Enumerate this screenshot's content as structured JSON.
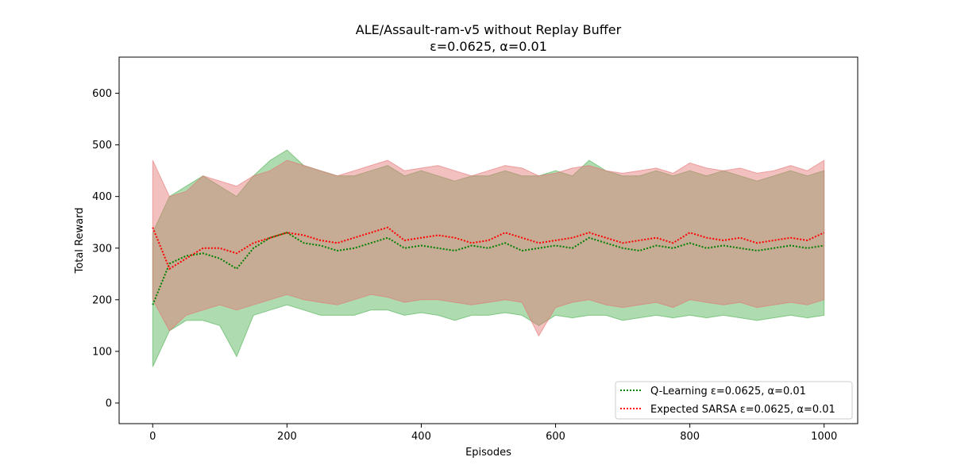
{
  "chart_data": {
    "type": "line",
    "title": "ALE/Assault-ram-v5 without Replay Buffer",
    "subtitle": "ε=0.0625, α=0.01",
    "xlabel": "Episodes",
    "ylabel": "Total Reward",
    "xlim": [
      -50,
      1050
    ],
    "ylim": [
      -40,
      670
    ],
    "xticks": [
      0,
      200,
      400,
      600,
      800,
      1000
    ],
    "yticks": [
      0,
      100,
      200,
      300,
      400,
      500,
      600
    ],
    "grid": false,
    "legend_position": "lower-right",
    "series": [
      {
        "name": "Q-Learning ε=0.0625, α=0.01",
        "color": "#008000",
        "band_color": "#4caf50",
        "line_style": "dotted",
        "x": [
          0,
          25,
          50,
          75,
          100,
          125,
          150,
          175,
          200,
          225,
          250,
          275,
          300,
          325,
          350,
          375,
          400,
          425,
          450,
          475,
          500,
          525,
          550,
          575,
          600,
          625,
          650,
          675,
          700,
          725,
          750,
          775,
          800,
          825,
          850,
          875,
          900,
          925,
          950,
          975,
          1000
        ],
        "mean": [
          190,
          270,
          285,
          290,
          280,
          260,
          300,
          320,
          330,
          310,
          305,
          295,
          300,
          310,
          320,
          300,
          305,
          300,
          295,
          305,
          300,
          310,
          295,
          300,
          305,
          300,
          320,
          310,
          300,
          295,
          305,
          300,
          310,
          300,
          305,
          300,
          295,
          300,
          305,
          300,
          305
        ],
        "lower": [
          70,
          140,
          160,
          160,
          150,
          90,
          170,
          180,
          190,
          180,
          170,
          170,
          170,
          180,
          180,
          170,
          175,
          170,
          160,
          170,
          170,
          175,
          170,
          150,
          170,
          165,
          170,
          170,
          160,
          165,
          170,
          165,
          170,
          165,
          170,
          165,
          160,
          165,
          170,
          165,
          170
        ],
        "upper": [
          330,
          400,
          420,
          440,
          420,
          400,
          440,
          470,
          490,
          460,
          450,
          440,
          440,
          450,
          460,
          440,
          450,
          440,
          430,
          440,
          440,
          450,
          440,
          440,
          450,
          440,
          470,
          450,
          440,
          440,
          450,
          440,
          450,
          440,
          450,
          440,
          430,
          440,
          450,
          440,
          450
        ]
      },
      {
        "name": "Expected SARSA ε=0.0625, α=0.01",
        "color": "#ff0000",
        "band_color": "#e57373",
        "line_style": "dotted",
        "x": [
          0,
          25,
          50,
          75,
          100,
          125,
          150,
          175,
          200,
          225,
          250,
          275,
          300,
          325,
          350,
          375,
          400,
          425,
          450,
          475,
          500,
          525,
          550,
          575,
          600,
          625,
          650,
          675,
          700,
          725,
          750,
          775,
          800,
          825,
          850,
          875,
          900,
          925,
          950,
          975,
          1000
        ],
        "mean": [
          340,
          260,
          280,
          300,
          300,
          290,
          310,
          320,
          330,
          325,
          315,
          310,
          320,
          330,
          340,
          315,
          320,
          325,
          320,
          310,
          315,
          330,
          320,
          310,
          315,
          320,
          330,
          320,
          310,
          315,
          320,
          310,
          330,
          320,
          315,
          320,
          310,
          315,
          320,
          315,
          330
        ],
        "lower": [
          200,
          140,
          170,
          180,
          190,
          180,
          190,
          200,
          210,
          200,
          195,
          190,
          200,
          210,
          205,
          195,
          200,
          200,
          195,
          190,
          195,
          200,
          195,
          130,
          185,
          195,
          200,
          190,
          185,
          190,
          195,
          185,
          200,
          195,
          190,
          195,
          185,
          190,
          195,
          190,
          200
        ],
        "upper": [
          470,
          400,
          410,
          440,
          430,
          420,
          440,
          450,
          470,
          460,
          450,
          440,
          450,
          460,
          470,
          450,
          455,
          460,
          450,
          440,
          450,
          460,
          455,
          440,
          445,
          455,
          460,
          450,
          445,
          450,
          455,
          445,
          465,
          455,
          450,
          455,
          445,
          450,
          460,
          450,
          470
        ]
      }
    ]
  }
}
